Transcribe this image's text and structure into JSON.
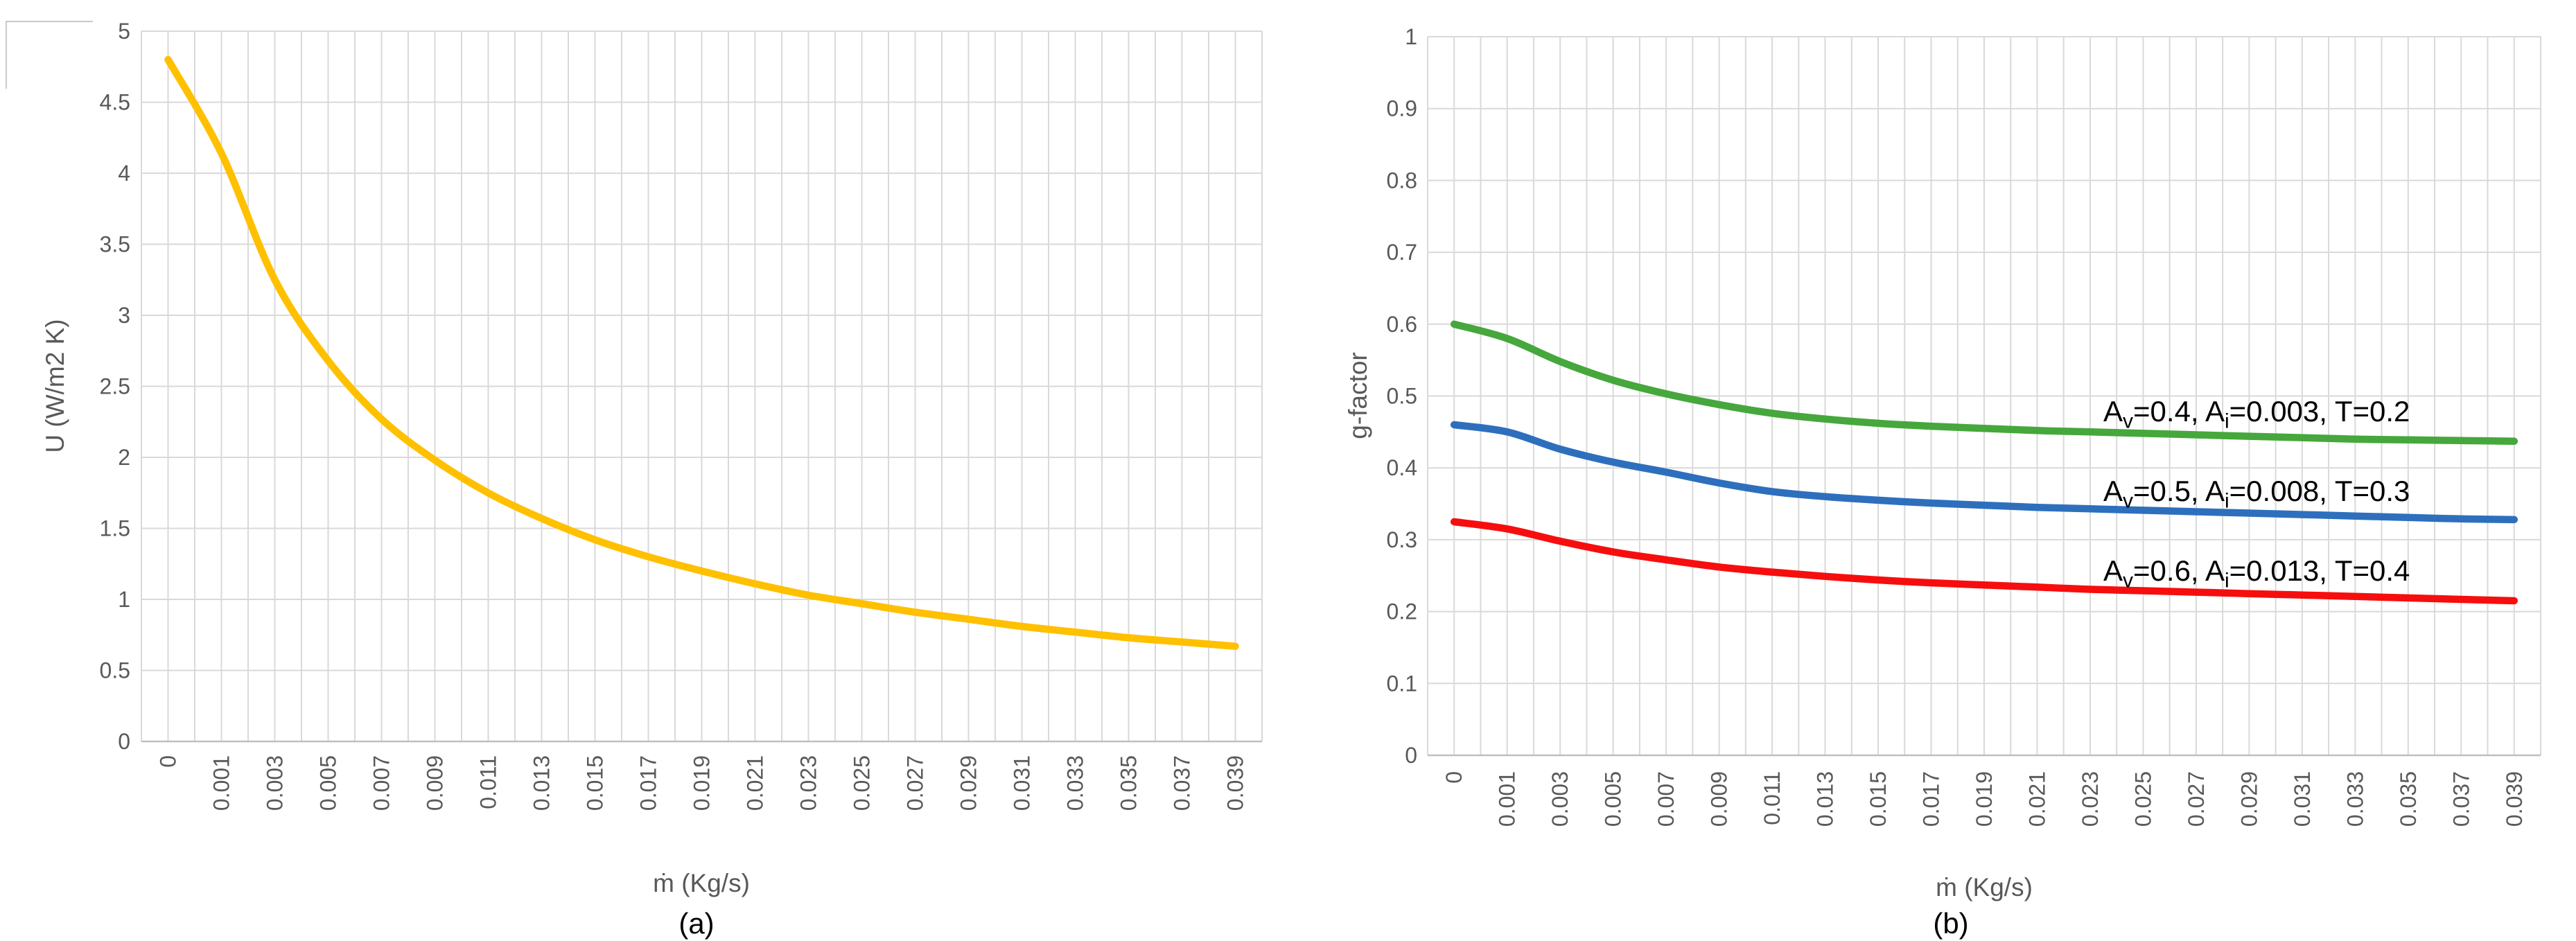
{
  "colors": {
    "grid": "#D9D9D9",
    "axis_line": "#BFBFBF",
    "tick_text": "#595959",
    "annotation_text": "#000000",
    "background": "#FFFFFF"
  },
  "chart_data": [
    {
      "type": "line",
      "caption": "(a)",
      "xlabel": "ṁ (Kg/s)",
      "ylabel": "U (W/m2 K)",
      "grid": true,
      "legend": "none",
      "ylim": [
        0,
        5
      ],
      "y_tick_labels": [
        "0",
        "0.5",
        "1",
        "1.5",
        "2",
        "2.5",
        "3",
        "3.5",
        "4",
        "4.5",
        "5"
      ],
      "x_tick_labels": [
        "0",
        "0.001",
        "0.003",
        "0.005",
        "0.007",
        "0.009",
        "0.011",
        "0.013",
        "0.015",
        "0.017",
        "0.019",
        "0.021",
        "0.023",
        "0.025",
        "0.027",
        "0.029",
        "0.031",
        "0.033",
        "0.035",
        "0.037",
        "0.039"
      ],
      "series": [
        {
          "name": "U",
          "color": "#FFC000",
          "values": [
            4.8,
            4.14,
            3.25,
            2.68,
            2.27,
            1.98,
            1.75,
            1.57,
            1.42,
            1.3,
            1.2,
            1.11,
            1.03,
            0.97,
            0.91,
            0.86,
            0.81,
            0.77,
            0.73,
            0.7,
            0.67
          ]
        }
      ]
    },
    {
      "type": "line",
      "caption": "(b)",
      "xlabel": "ṁ (Kg/s)",
      "ylabel": "g-factor",
      "grid": true,
      "legend": "none",
      "ylim": [
        0,
        1
      ],
      "y_tick_labels": [
        "0",
        "0.1",
        "0.2",
        "0.3",
        "0.4",
        "0.5",
        "0.6",
        "0.7",
        "0.8",
        "0.9",
        "1"
      ],
      "x_tick_labels": [
        "0",
        "0.001",
        "0.003",
        "0.005",
        "0.007",
        "0.009",
        "0.011",
        "0.013",
        "0.015",
        "0.017",
        "0.019",
        "0.021",
        "0.023",
        "0.025",
        "0.027",
        "0.029",
        "0.031",
        "0.033",
        "0.035",
        "0.037",
        "0.039"
      ],
      "series": [
        {
          "name": "Av=0.4, Ai=0.003, T=0.2",
          "color": "#46A73C",
          "values": [
            0.6,
            0.58,
            0.548,
            0.522,
            0.503,
            0.488,
            0.476,
            0.468,
            0.462,
            0.458,
            0.455,
            0.452,
            0.45,
            0.448,
            0.446,
            0.444,
            0.442,
            0.44,
            0.439,
            0.438,
            0.437
          ]
        },
        {
          "name": "Av=0.5, Ai=0.008, T=0.3",
          "color": "#2E6FBD",
          "values": [
            0.46,
            0.45,
            0.426,
            0.408,
            0.394,
            0.379,
            0.367,
            0.36,
            0.355,
            0.351,
            0.348,
            0.345,
            0.343,
            0.341,
            0.339,
            0.337,
            0.335,
            0.333,
            0.331,
            0.329,
            0.328
          ]
        },
        {
          "name": "Av=0.6, Ai=0.013, T=0.4",
          "color": "#F60E0E",
          "values": [
            0.325,
            0.315,
            0.298,
            0.283,
            0.272,
            0.262,
            0.255,
            0.249,
            0.244,
            0.24,
            0.237,
            0.234,
            0.231,
            0.229,
            0.227,
            0.225,
            0.223,
            0.221,
            0.219,
            0.217,
            0.215
          ]
        }
      ],
      "annotations": [
        {
          "text": "Av=0.4, Ai=0.003, T=0.2",
          "segments": [
            [
              "A"
            ],
            [
              "v",
              "sub"
            ],
            [
              "=0.4, A"
            ],
            [
              "i",
              "sub"
            ],
            [
              "=0.003, T=0.2"
            ]
          ]
        },
        {
          "text": "Av=0.5, Ai=0.008, T=0.3",
          "segments": [
            [
              "A"
            ],
            [
              "v",
              "sub"
            ],
            [
              "=0.5, A"
            ],
            [
              "i",
              "sub"
            ],
            [
              "=0.008, T=0.3"
            ]
          ]
        },
        {
          "text": "Av=0.6, Ai=0.013, T=0.4",
          "segments": [
            [
              "A"
            ],
            [
              "v",
              "sub"
            ],
            [
              "=0.6, A"
            ],
            [
              "i",
              "sub"
            ],
            [
              "=0.013, T=0.4"
            ]
          ]
        }
      ]
    }
  ]
}
